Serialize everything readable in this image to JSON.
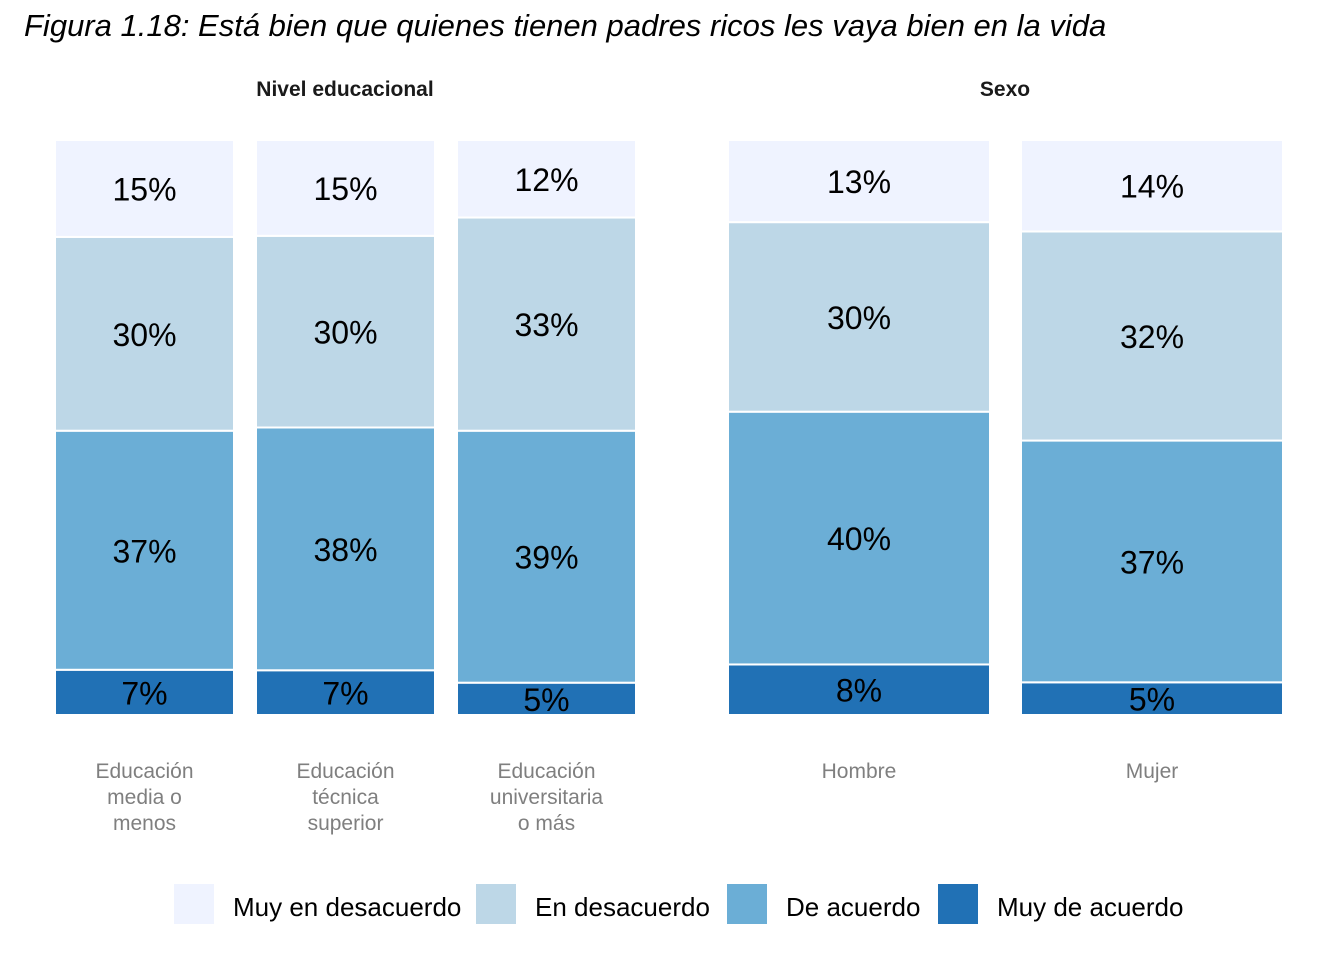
{
  "title": "Figura 1.18: Está bien que quienes tienen padres ricos les vaya bien en la vida",
  "colors": {
    "Muy en desacuerdo": "#eff3ff",
    "En desacuerdo": "#bdd7e7",
    "De acuerdo": "#6baed6",
    "Muy de acuerdo": "#2171b5"
  },
  "chart_data": {
    "type": "bar",
    "stacked": true,
    "percent_stacked": true,
    "legend_position": "bottom",
    "legend": [
      "Muy en desacuerdo",
      "En desacuerdo",
      "De acuerdo",
      "Muy de acuerdo"
    ],
    "panels": [
      {
        "title": "Nivel educacional",
        "categories": [
          "Educación\nmedia o\nmenos",
          "Educación\ntécnica\nsuperior",
          "Educación\nuniversitaria\no más"
        ],
        "series": [
          {
            "name": "Muy de acuerdo",
            "values": [
              7,
              7,
              5
            ],
            "labels": [
              "7%",
              "7%",
              "5%"
            ]
          },
          {
            "name": "De acuerdo",
            "values": [
              37,
              38,
              39
            ],
            "labels": [
              "37%",
              "38%",
              "39%"
            ]
          },
          {
            "name": "En desacuerdo",
            "values": [
              30,
              30,
              33
            ],
            "labels": [
              "30%",
              "30%",
              "33%"
            ]
          },
          {
            "name": "Muy en desacuerdo",
            "values": [
              15,
              15,
              12
            ],
            "labels": [
              "15%",
              "15%",
              "12%"
            ]
          }
        ]
      },
      {
        "title": "Sexo",
        "categories": [
          "Hombre",
          "Mujer"
        ],
        "series": [
          {
            "name": "Muy de acuerdo",
            "values": [
              8,
              5
            ],
            "labels": [
              "8%",
              "5%"
            ]
          },
          {
            "name": "De acuerdo",
            "values": [
              40,
              37
            ],
            "labels": [
              "40%",
              "37%"
            ]
          },
          {
            "name": "En desacuerdo",
            "values": [
              30,
              32
            ],
            "labels": [
              "30%",
              "32%"
            ]
          },
          {
            "name": "Muy en desacuerdo",
            "values": [
              13,
              14
            ],
            "labels": [
              "13%",
              "14%"
            ]
          }
        ]
      }
    ]
  }
}
